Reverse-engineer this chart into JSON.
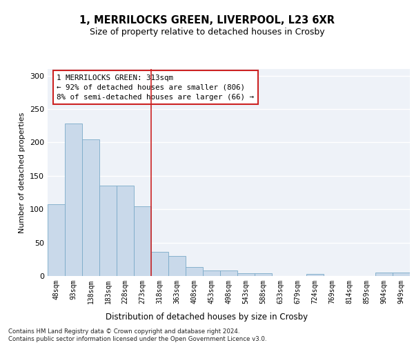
{
  "title": "1, MERRILOCKS GREEN, LIVERPOOL, L23 6XR",
  "subtitle": "Size of property relative to detached houses in Crosby",
  "xlabel": "Distribution of detached houses by size in Crosby",
  "ylabel": "Number of detached properties",
  "bar_color": "#c9d9ea",
  "bar_edge_color": "#7aaac8",
  "background_color": "#eef2f8",
  "categories": [
    "48sqm",
    "93sqm",
    "138sqm",
    "183sqm",
    "228sqm",
    "273sqm",
    "318sqm",
    "363sqm",
    "408sqm",
    "453sqm",
    "498sqm",
    "543sqm",
    "588sqm",
    "633sqm",
    "679sqm",
    "724sqm",
    "769sqm",
    "814sqm",
    "859sqm",
    "904sqm",
    "949sqm"
  ],
  "values": [
    107,
    228,
    205,
    135,
    135,
    104,
    36,
    30,
    13,
    8,
    8,
    4,
    4,
    0,
    0,
    3,
    0,
    0,
    0,
    5,
    5
  ],
  "ylim": [
    0,
    310
  ],
  "yticks": [
    0,
    50,
    100,
    150,
    200,
    250,
    300
  ],
  "annotation_text": "1 MERRILOCKS GREEN: 313sqm\n← 92% of detached houses are smaller (806)\n8% of semi-detached houses are larger (66) →",
  "vline_x_index": 6,
  "footer_line1": "Contains HM Land Registry data © Crown copyright and database right 2024.",
  "footer_line2": "Contains public sector information licensed under the Open Government Licence v3.0."
}
